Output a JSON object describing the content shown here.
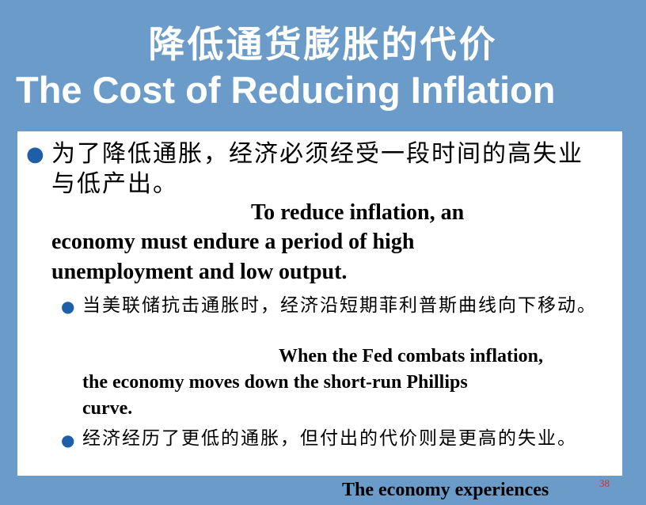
{
  "title": {
    "zh": "降低通货膨胀的代价",
    "en": "The Cost of Reducing Inflation"
  },
  "bullets": [
    {
      "zh": "为了降低通胀，经济必须经受一段时间的高失业与低产出。",
      "en_lines": [
        "To reduce inflation, an",
        "economy must endure a period of high",
        "unemployment and low output."
      ]
    },
    {
      "zh": "当美联储抗击通胀时，经济沿短期菲利普斯曲线向下移动。",
      "en_lines": [
        "When the Fed combats inflation,",
        "the economy moves down the short-run Phillips",
        "curve."
      ]
    },
    {
      "zh": "经济经历了更低的通胀，但付出的代价则是更高的失业。",
      "en_lines": [
        "The economy experiences"
      ]
    }
  ],
  "page_number": "38",
  "colors": {
    "background": "#6b9bc9",
    "panel": "#ffffff",
    "bullet": "#1f5fa8",
    "page_number": "#c0392b"
  }
}
